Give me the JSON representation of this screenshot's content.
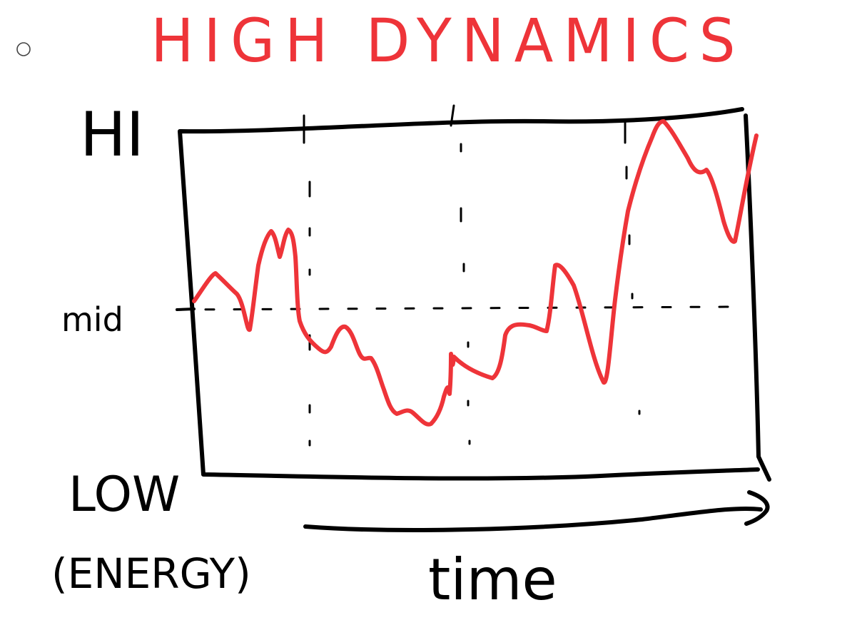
{
  "canvas_bg": "#ffffff",
  "ink_color": "#000000",
  "accent_color": "#ee3439",
  "toolbar": {
    "radio_icon": "radio-circle-icon"
  },
  "title": "HIGH DYNAMICS",
  "y_axis": {
    "top_label": "HI",
    "mid_label": "mid",
    "bottom_label": "LOW",
    "unit_label": "(ENERGY)"
  },
  "x_axis": {
    "label": "time",
    "arrow_icon": "arrow-right-icon"
  }
}
